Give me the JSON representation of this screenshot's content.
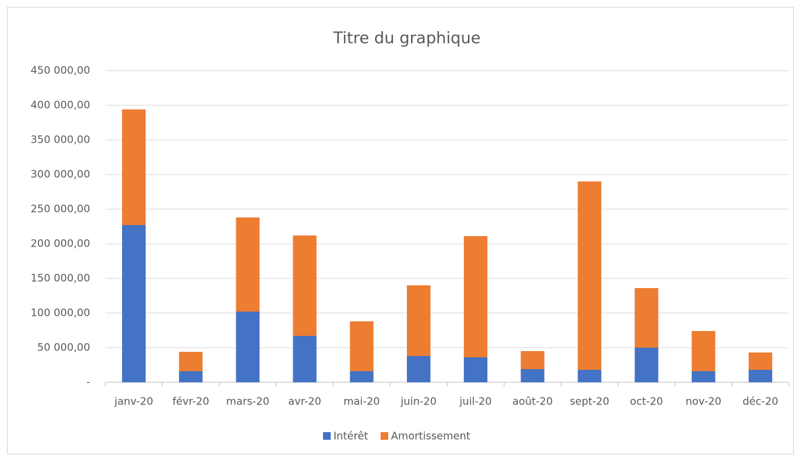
{
  "chart_data": {
    "type": "stacked_bar",
    "title": "Titre du graphique",
    "categories": [
      "janv-20",
      "févr-20",
      "mars-20",
      "avr-20",
      "mai-20",
      "juin-20",
      "juil-20",
      "août-20",
      "sept-20",
      "oct-20",
      "nov-20",
      "déc-20"
    ],
    "series": [
      {
        "name": "Intérêt",
        "color": "#4472c4",
        "values": [
          227000,
          16000,
          102000,
          67000,
          16000,
          38000,
          36000,
          19000,
          18000,
          50000,
          16000,
          18000
        ]
      },
      {
        "name": "Amortissement",
        "color": "#ed7d31",
        "values": [
          167000,
          28000,
          136000,
          145000,
          72000,
          102000,
          175000,
          26000,
          272000,
          86000,
          58000,
          25000
        ]
      }
    ],
    "ylim": [
      0,
      450000
    ],
    "yticks": [
      {
        "value": 0,
        "label": "-"
      },
      {
        "value": 50000,
        "label": "50 000,00"
      },
      {
        "value": 100000,
        "label": "100 000,00"
      },
      {
        "value": 150000,
        "label": "150 000,00"
      },
      {
        "value": 200000,
        "label": "200 000,00"
      },
      {
        "value": 250000,
        "label": "250 000,00"
      },
      {
        "value": 300000,
        "label": "300 000,00"
      },
      {
        "value": 350000,
        "label": "350 000,00"
      },
      {
        "value": 400000,
        "label": "400 000,00"
      },
      {
        "value": 450000,
        "label": "450 000,00"
      }
    ],
    "grid": true,
    "legend": "bottom"
  }
}
